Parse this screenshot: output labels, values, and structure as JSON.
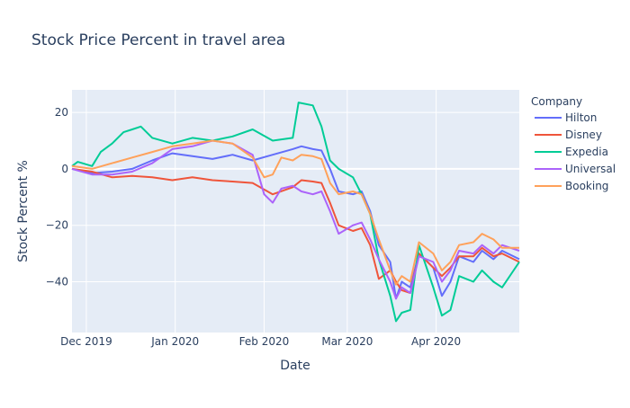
{
  "chart_data": {
    "type": "line",
    "title": "Stock Price Percent in travel area",
    "xlabel": "Date",
    "ylabel": "Stock Percent %",
    "x_range": [
      "2019-11-26",
      "2020-04-30"
    ],
    "ylim": [
      -58,
      28
    ],
    "x_ticks": [
      {
        "date": "2019-12-01",
        "label": "Dec 2019"
      },
      {
        "date": "2020-01-01",
        "label": "Jan 2020"
      },
      {
        "date": "2020-02-01",
        "label": "Feb 2020"
      },
      {
        "date": "2020-03-01",
        "label": "Mar 2020"
      },
      {
        "date": "2020-04-01",
        "label": "Apr 2020"
      }
    ],
    "y_ticks": [
      20,
      0,
      -20,
      -40
    ],
    "grid": true,
    "legend": {
      "title": "Company",
      "placement": "top-right"
    },
    "series": [
      {
        "name": "Hilton",
        "color": "#636efa",
        "points": [
          [
            "2019-11-26",
            0
          ],
          [
            "2019-12-03",
            -1.5
          ],
          [
            "2019-12-10",
            -1
          ],
          [
            "2019-12-17",
            0
          ],
          [
            "2019-12-24",
            3
          ],
          [
            "2019-12-31",
            5.5
          ],
          [
            "2020-01-07",
            4.5
          ],
          [
            "2020-01-14",
            3.5
          ],
          [
            "2020-01-21",
            5
          ],
          [
            "2020-01-28",
            3
          ],
          [
            "2020-02-04",
            5
          ],
          [
            "2020-02-11",
            7
          ],
          [
            "2020-02-14",
            8
          ],
          [
            "2020-02-18",
            7
          ],
          [
            "2020-02-21",
            6.5
          ],
          [
            "2020-02-24",
            0
          ],
          [
            "2020-02-27",
            -8
          ],
          [
            "2020-03-03",
            -9
          ],
          [
            "2020-03-06",
            -8
          ],
          [
            "2020-03-09",
            -15
          ],
          [
            "2020-03-12",
            -27
          ],
          [
            "2020-03-16",
            -33
          ],
          [
            "2020-03-18",
            -46
          ],
          [
            "2020-03-20",
            -40
          ],
          [
            "2020-03-23",
            -42
          ],
          [
            "2020-03-26",
            -30
          ],
          [
            "2020-03-31",
            -35
          ],
          [
            "2020-04-03",
            -45
          ],
          [
            "2020-04-06",
            -40
          ],
          [
            "2020-04-09",
            -31
          ],
          [
            "2020-04-14",
            -33
          ],
          [
            "2020-04-17",
            -29
          ],
          [
            "2020-04-21",
            -32
          ],
          [
            "2020-04-24",
            -29
          ],
          [
            "2020-04-30",
            -32
          ]
        ]
      },
      {
        "name": "Disney",
        "color": "#ef553b",
        "points": [
          [
            "2019-11-26",
            0
          ],
          [
            "2019-12-03",
            -1
          ],
          [
            "2019-12-10",
            -3
          ],
          [
            "2019-12-17",
            -2.5
          ],
          [
            "2019-12-24",
            -3
          ],
          [
            "2019-12-31",
            -4
          ],
          [
            "2020-01-07",
            -3
          ],
          [
            "2020-01-14",
            -4
          ],
          [
            "2020-01-21",
            -4.5
          ],
          [
            "2020-01-28",
            -5
          ],
          [
            "2020-02-04",
            -9
          ],
          [
            "2020-02-11",
            -6.5
          ],
          [
            "2020-02-14",
            -4
          ],
          [
            "2020-02-18",
            -4.5
          ],
          [
            "2020-02-21",
            -5
          ],
          [
            "2020-02-24",
            -12
          ],
          [
            "2020-02-27",
            -20
          ],
          [
            "2020-03-03",
            -22
          ],
          [
            "2020-03-06",
            -21
          ],
          [
            "2020-03-09",
            -27
          ],
          [
            "2020-03-12",
            -39
          ],
          [
            "2020-03-16",
            -36
          ],
          [
            "2020-03-18",
            -40
          ],
          [
            "2020-03-20",
            -43
          ],
          [
            "2020-03-23",
            -44
          ],
          [
            "2020-03-26",
            -30
          ],
          [
            "2020-03-31",
            -35
          ],
          [
            "2020-04-03",
            -38
          ],
          [
            "2020-04-06",
            -35
          ],
          [
            "2020-04-09",
            -31
          ],
          [
            "2020-04-14",
            -31
          ],
          [
            "2020-04-17",
            -28
          ],
          [
            "2020-04-21",
            -31
          ],
          [
            "2020-04-24",
            -30
          ],
          [
            "2020-04-30",
            -33
          ]
        ]
      },
      {
        "name": "Expedia",
        "color": "#00cc96",
        "points": [
          [
            "2019-11-26",
            1
          ],
          [
            "2019-11-28",
            2.5
          ],
          [
            "2019-12-03",
            1
          ],
          [
            "2019-12-06",
            6
          ],
          [
            "2019-12-10",
            9
          ],
          [
            "2019-12-14",
            13
          ],
          [
            "2019-12-17",
            14
          ],
          [
            "2019-12-20",
            15
          ],
          [
            "2019-12-24",
            11
          ],
          [
            "2019-12-31",
            9
          ],
          [
            "2020-01-07",
            11
          ],
          [
            "2020-01-14",
            10
          ],
          [
            "2020-01-21",
            11.5
          ],
          [
            "2020-01-28",
            14
          ],
          [
            "2020-02-04",
            10
          ],
          [
            "2020-02-11",
            11
          ],
          [
            "2020-02-13",
            23.5
          ],
          [
            "2020-02-18",
            22.5
          ],
          [
            "2020-02-21",
            15
          ],
          [
            "2020-02-24",
            3
          ],
          [
            "2020-02-27",
            0
          ],
          [
            "2020-03-03",
            -3
          ],
          [
            "2020-03-06",
            -9
          ],
          [
            "2020-03-09",
            -16
          ],
          [
            "2020-03-12",
            -32
          ],
          [
            "2020-03-16",
            -45
          ],
          [
            "2020-03-18",
            -54
          ],
          [
            "2020-03-20",
            -51
          ],
          [
            "2020-03-23",
            -50
          ],
          [
            "2020-03-26",
            -27
          ],
          [
            "2020-03-31",
            -42
          ],
          [
            "2020-04-03",
            -52
          ],
          [
            "2020-04-06",
            -50
          ],
          [
            "2020-04-09",
            -38
          ],
          [
            "2020-04-14",
            -40
          ],
          [
            "2020-04-17",
            -36
          ],
          [
            "2020-04-21",
            -40
          ],
          [
            "2020-04-24",
            -42
          ],
          [
            "2020-04-30",
            -33
          ]
        ]
      },
      {
        "name": "Universal",
        "color": "#ab63fa",
        "points": [
          [
            "2019-11-26",
            0
          ],
          [
            "2019-12-03",
            -2
          ],
          [
            "2019-12-10",
            -2
          ],
          [
            "2019-12-17",
            -1
          ],
          [
            "2019-12-24",
            2
          ],
          [
            "2019-12-31",
            7
          ],
          [
            "2020-01-07",
            8
          ],
          [
            "2020-01-14",
            10
          ],
          [
            "2020-01-21",
            9
          ],
          [
            "2020-01-28",
            5
          ],
          [
            "2020-02-01",
            -9
          ],
          [
            "2020-02-04",
            -12
          ],
          [
            "2020-02-07",
            -7
          ],
          [
            "2020-02-11",
            -6
          ],
          [
            "2020-02-14",
            -8
          ],
          [
            "2020-02-18",
            -9
          ],
          [
            "2020-02-21",
            -8
          ],
          [
            "2020-02-24",
            -15
          ],
          [
            "2020-02-27",
            -23
          ],
          [
            "2020-03-03",
            -20
          ],
          [
            "2020-03-06",
            -19
          ],
          [
            "2020-03-09",
            -25
          ],
          [
            "2020-03-12",
            -32
          ],
          [
            "2020-03-16",
            -40
          ],
          [
            "2020-03-18",
            -46
          ],
          [
            "2020-03-20",
            -42
          ],
          [
            "2020-03-23",
            -44
          ],
          [
            "2020-03-26",
            -31
          ],
          [
            "2020-03-31",
            -33
          ],
          [
            "2020-04-03",
            -40
          ],
          [
            "2020-04-06",
            -36
          ],
          [
            "2020-04-09",
            -29
          ],
          [
            "2020-04-14",
            -30
          ],
          [
            "2020-04-17",
            -27
          ],
          [
            "2020-04-21",
            -30
          ],
          [
            "2020-04-24",
            -27
          ],
          [
            "2020-04-30",
            -29
          ]
        ]
      },
      {
        "name": "Booking",
        "color": "#ffa15a",
        "points": [
          [
            "2019-11-26",
            1
          ],
          [
            "2019-12-03",
            0
          ],
          [
            "2019-12-10",
            2
          ],
          [
            "2019-12-17",
            4
          ],
          [
            "2019-12-24",
            6
          ],
          [
            "2019-12-31",
            8
          ],
          [
            "2020-01-07",
            9
          ],
          [
            "2020-01-14",
            10
          ],
          [
            "2020-01-21",
            9
          ],
          [
            "2020-01-28",
            4
          ],
          [
            "2020-02-01",
            -3
          ],
          [
            "2020-02-04",
            -2
          ],
          [
            "2020-02-07",
            4
          ],
          [
            "2020-02-11",
            3
          ],
          [
            "2020-02-14",
            5
          ],
          [
            "2020-02-18",
            4.5
          ],
          [
            "2020-02-21",
            3.5
          ],
          [
            "2020-02-24",
            -5
          ],
          [
            "2020-02-27",
            -9
          ],
          [
            "2020-03-03",
            -8
          ],
          [
            "2020-03-06",
            -9
          ],
          [
            "2020-03-09",
            -16
          ],
          [
            "2020-03-12",
            -25
          ],
          [
            "2020-03-16",
            -36
          ],
          [
            "2020-03-18",
            -41
          ],
          [
            "2020-03-20",
            -38
          ],
          [
            "2020-03-23",
            -40
          ],
          [
            "2020-03-26",
            -26
          ],
          [
            "2020-03-31",
            -30
          ],
          [
            "2020-04-03",
            -36
          ],
          [
            "2020-04-06",
            -33
          ],
          [
            "2020-04-09",
            -27
          ],
          [
            "2020-04-14",
            -26
          ],
          [
            "2020-04-17",
            -23
          ],
          [
            "2020-04-21",
            -25
          ],
          [
            "2020-04-24",
            -28
          ],
          [
            "2020-04-30",
            -28
          ]
        ]
      }
    ]
  }
}
